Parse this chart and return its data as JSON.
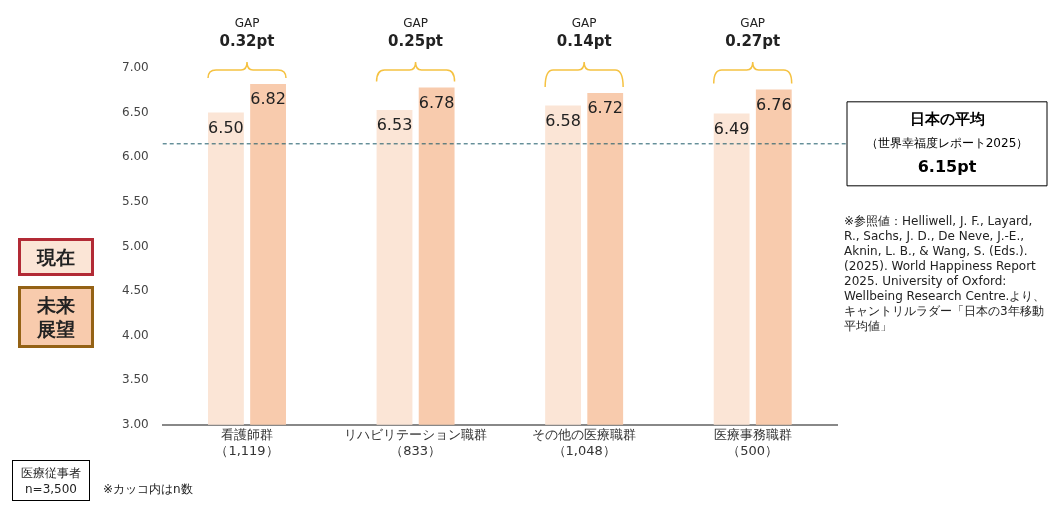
{
  "chart_data": {
    "type": "bar",
    "categories": [
      "看護師群（1,119）",
      "リハビリテーション職群（833）",
      "その他の医療職群（1,048）",
      "医療事務職群（500）"
    ],
    "series": [
      {
        "name": "現在",
        "color": "#fbe5d6",
        "values": [
          6.5,
          6.53,
          6.58,
          6.49
        ],
        "value_labels": [
          "6.50",
          "6.53",
          "6.58",
          "6.49"
        ]
      },
      {
        "name": "未来展望",
        "color": "#f8cbad",
        "values": [
          6.82,
          6.78,
          6.72,
          6.76
        ],
        "value_labels": [
          "6.82",
          "6.78",
          "6.72",
          "6.76"
        ]
      }
    ],
    "ylim": [
      3.0,
      7.0
    ],
    "yticks": [
      {
        "value": 3,
        "label": "3.00"
      },
      {
        "value": 3.5,
        "label": "3.50"
      },
      {
        "value": 4,
        "label": "4.00"
      },
      {
        "value": 4.5,
        "label": "4.50"
      },
      {
        "value": 5,
        "label": "5.00"
      },
      {
        "value": 5.5,
        "label": "5.50"
      },
      {
        "value": 6,
        "label": "6.00"
      },
      {
        "value": 6.5,
        "label": "6.50"
      },
      {
        "value": 7,
        "label": "7.00"
      }
    ],
    "grid": false,
    "legend": "left",
    "ref_lines": [
      {
        "axis": "y",
        "value": 6.15,
        "label": "日本の平均（世界幸福度レポート2025）6.15pt",
        "color": "#1f5c6b",
        "line_style": "dashed"
      }
    ],
    "annotations": [
      {
        "text": "GAP\n0.32pt",
        "x": "看護師群（1,119）",
        "y": 6.82
      },
      {
        "text": "GAP\n0.25pt",
        "x": "リハビリテーション職群（833）",
        "y": 6.78
      },
      {
        "text": "GAP\n0.14pt",
        "x": "その他の医療職群（1,048）",
        "y": 6.72
      },
      {
        "text": "GAP\n0.27pt",
        "x": "医療事務職群（500）",
        "y": 6.76
      },
      "※参照値：Helliwell, J. F., Layard, R., Sachs, J. D., De Neve, J.-E., Aknin, L. B., & Wang, S. (Eds.). (2025). World Happiness Report 2025. University of Oxford: Wellbeing Research Centre.より、キャントリルラダー「日本の3年移動平均値」",
      "医療従事者\nn=3,500",
      "※カッコ内はn数"
    ]
  }
}
